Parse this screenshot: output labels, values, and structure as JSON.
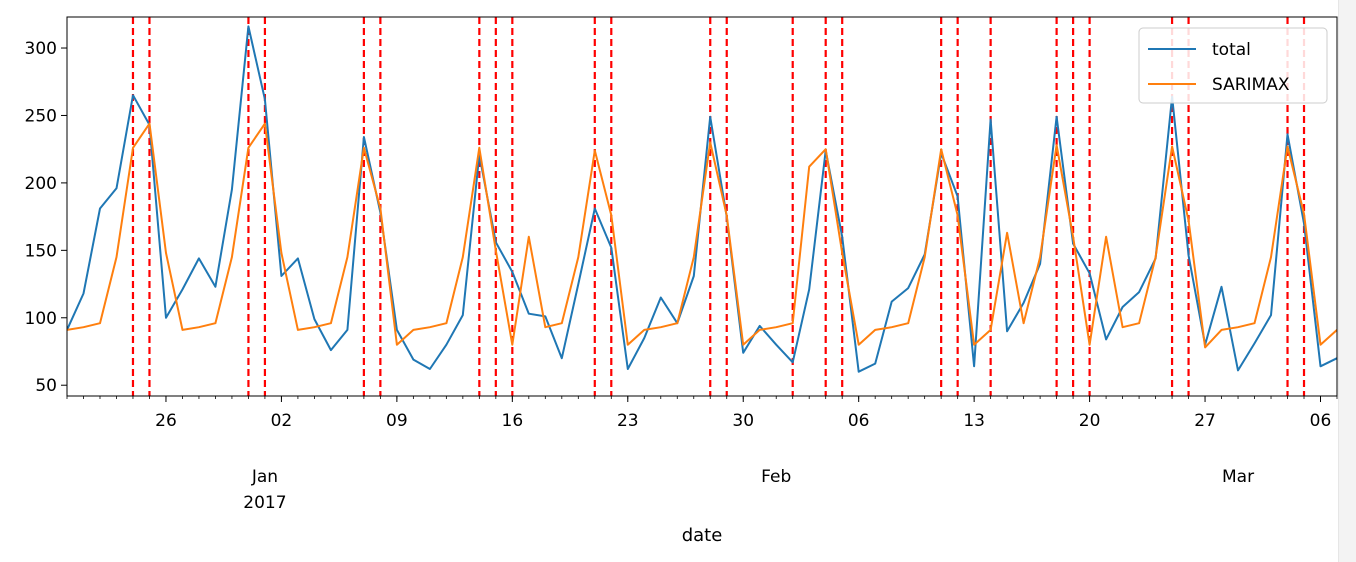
{
  "chart_data": {
    "type": "line",
    "xlabel": "date",
    "x_start": "2016-12-20",
    "x_end": "2017-03-07",
    "xticks_minor": [
      {
        "date": "2016-12-26",
        "label": "26"
      },
      {
        "date": "2017-01-02",
        "label": "02"
      },
      {
        "date": "2017-01-09",
        "label": "09"
      },
      {
        "date": "2017-01-16",
        "label": "16"
      },
      {
        "date": "2017-01-23",
        "label": "23"
      },
      {
        "date": "2017-01-30",
        "label": "30"
      },
      {
        "date": "2017-02-06",
        "label": "06"
      },
      {
        "date": "2017-02-13",
        "label": "13"
      },
      {
        "date": "2017-02-20",
        "label": "20"
      },
      {
        "date": "2017-02-27",
        "label": "27"
      },
      {
        "date": "2017-03-06",
        "label": "06"
      }
    ],
    "xticks_major": [
      {
        "date": "2017-01-01",
        "label": "Jan",
        "label2": "2017"
      },
      {
        "date": "2017-02-01",
        "label": "Feb",
        "label2": ""
      },
      {
        "date": "2017-03-01",
        "label": "Mar",
        "label2": ""
      }
    ],
    "ylim": [
      42,
      323
    ],
    "yticks": [
      50,
      100,
      150,
      200,
      250,
      300
    ],
    "legend_position": "top-right",
    "series": [
      {
        "name": "total",
        "color": "#1f77b4",
        "dates": [
          "2016-12-20",
          "2016-12-21",
          "2016-12-22",
          "2016-12-23",
          "2016-12-24",
          "2016-12-25",
          "2016-12-26",
          "2016-12-27",
          "2016-12-28",
          "2016-12-29",
          "2016-12-30",
          "2016-12-31",
          "2017-01-01",
          "2017-01-02",
          "2017-01-03",
          "2017-01-04",
          "2017-01-05",
          "2017-01-06",
          "2017-01-07",
          "2017-01-08",
          "2017-01-09",
          "2017-01-10",
          "2017-01-11",
          "2017-01-12",
          "2017-01-13",
          "2017-01-14",
          "2017-01-15",
          "2017-01-16",
          "2017-01-17",
          "2017-01-18",
          "2017-01-19",
          "2017-01-20",
          "2017-01-21",
          "2017-01-22",
          "2017-01-23",
          "2017-01-24",
          "2017-01-25",
          "2017-01-26",
          "2017-01-27",
          "2017-01-28",
          "2017-01-29",
          "2017-01-30",
          "2017-01-31",
          "2017-02-01",
          "2017-02-02",
          "2017-02-03",
          "2017-02-04",
          "2017-02-05",
          "2017-02-06",
          "2017-02-07",
          "2017-02-08",
          "2017-02-09",
          "2017-02-10",
          "2017-02-11",
          "2017-02-12",
          "2017-02-13",
          "2017-02-14",
          "2017-02-15",
          "2017-02-16",
          "2017-02-17",
          "2017-02-18",
          "2017-02-19",
          "2017-02-20",
          "2017-02-21",
          "2017-02-22",
          "2017-02-23",
          "2017-02-24",
          "2017-02-25",
          "2017-02-26",
          "2017-02-27",
          "2017-02-28",
          "2017-03-01",
          "2017-03-02",
          "2017-03-03",
          "2017-03-04",
          "2017-03-05",
          "2017-03-06",
          "2017-03-07"
        ],
        "values": [
          91,
          118,
          181,
          196,
          265,
          243,
          100,
          121,
          144,
          123,
          195,
          316,
          262,
          131,
          144,
          99,
          76,
          91,
          234,
          178,
          91,
          69,
          62,
          80,
          102,
          221,
          156,
          134,
          103,
          101,
          70,
          125,
          181,
          152,
          62,
          85,
          115,
          96,
          131,
          249,
          175,
          74,
          94,
          80,
          67,
          121,
          224,
          160,
          60,
          66,
          112,
          122,
          147,
          222,
          190,
          64,
          247,
          90,
          111,
          140,
          249,
          155,
          133,
          84,
          108,
          119,
          144,
          264,
          146,
          80,
          123,
          61,
          81,
          102,
          236,
          170,
          64,
          70
        ]
      },
      {
        "name": "SARIMAX",
        "color": "#ff7f0e",
        "dates": [
          "2016-12-20",
          "2016-12-21",
          "2016-12-22",
          "2016-12-23",
          "2016-12-24",
          "2016-12-25",
          "2016-12-26",
          "2016-12-27",
          "2016-12-28",
          "2016-12-29",
          "2016-12-30",
          "2016-12-31",
          "2017-01-01",
          "2017-01-02",
          "2017-01-03",
          "2017-01-04",
          "2017-01-05",
          "2017-01-06",
          "2017-01-07",
          "2017-01-08",
          "2017-01-09",
          "2017-01-10",
          "2017-01-11",
          "2017-01-12",
          "2017-01-13",
          "2017-01-14",
          "2017-01-15",
          "2017-01-16",
          "2017-01-17",
          "2017-01-18",
          "2017-01-19",
          "2017-01-20",
          "2017-01-21",
          "2017-01-22",
          "2017-01-23",
          "2017-01-24",
          "2017-01-25",
          "2017-01-26",
          "2017-01-27",
          "2017-01-28",
          "2017-01-29",
          "2017-01-30",
          "2017-01-31",
          "2017-02-01",
          "2017-02-02",
          "2017-02-03",
          "2017-02-04",
          "2017-02-05",
          "2017-02-06",
          "2017-02-07",
          "2017-02-08",
          "2017-02-09",
          "2017-02-10",
          "2017-02-11",
          "2017-02-12",
          "2017-02-13",
          "2017-02-14",
          "2017-02-15",
          "2017-02-16",
          "2017-02-17",
          "2017-02-18",
          "2017-02-19",
          "2017-02-20",
          "2017-02-21",
          "2017-02-22",
          "2017-02-23",
          "2017-02-24",
          "2017-02-25",
          "2017-02-26",
          "2017-02-27",
          "2017-02-28",
          "2017-03-01",
          "2017-03-02",
          "2017-03-03",
          "2017-03-04",
          "2017-03-05",
          "2017-03-06",
          "2017-03-07"
        ],
        "values": [
          91,
          93,
          96,
          145,
          226,
          244,
          148,
          91,
          93,
          96,
          145,
          226,
          244,
          148,
          91,
          93,
          96,
          145,
          226,
          181,
          80,
          91,
          93,
          96,
          145,
          226,
          150,
          80,
          160,
          93,
          96,
          145,
          224,
          176,
          80,
          91,
          93,
          96,
          145,
          230,
          176,
          80,
          91,
          93,
          96,
          212,
          225,
          148,
          80,
          91,
          93,
          96,
          145,
          225,
          176,
          80,
          91,
          163,
          96,
          145,
          228,
          160,
          80,
          160,
          93,
          96,
          145,
          227,
          172,
          78,
          91,
          93,
          96,
          145,
          227,
          177,
          80,
          91
        ]
      }
    ],
    "vlines": {
      "color": "#ff0000",
      "style": "dashed",
      "dates": [
        "2016-12-24",
        "2016-12-25",
        "2016-12-31",
        "2017-01-01",
        "2017-01-07",
        "2017-01-08",
        "2017-01-14",
        "2017-01-15",
        "2017-01-16",
        "2017-01-21",
        "2017-01-22",
        "2017-01-28",
        "2017-01-29",
        "2017-02-02",
        "2017-02-04",
        "2017-02-05",
        "2017-02-11",
        "2017-02-12",
        "2017-02-14",
        "2017-02-18",
        "2017-02-19",
        "2017-02-20",
        "2017-02-25",
        "2017-02-26",
        "2017-03-04",
        "2017-03-05"
      ]
    }
  }
}
